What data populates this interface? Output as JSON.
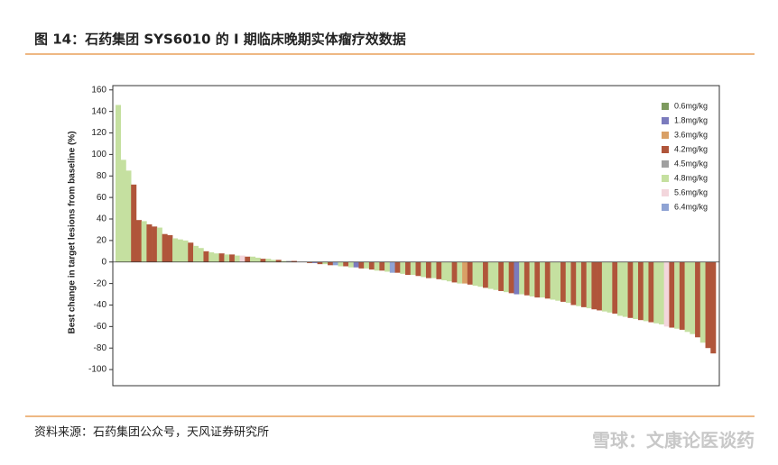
{
  "header": {
    "title": "图 14：石药集团 SYS6010 的 I 期临床晚期实体瘤疗效数据"
  },
  "chart_data": {
    "type": "waterfall",
    "y_label": "Best change in target lesions from baseline (%)",
    "ylim": [
      -115,
      164
    ],
    "yticks": [
      -100,
      -80,
      -60,
      -40,
      -20,
      0,
      20,
      40,
      60,
      80,
      100,
      120,
      140,
      160
    ],
    "series": [
      {
        "name": "0.6mg/kg",
        "color": "#7d9a5e"
      },
      {
        "name": "1.8mg/kg",
        "color": "#7b7bbd"
      },
      {
        "name": "3.6mg/kg",
        "color": "#d9a066"
      },
      {
        "name": "4.2mg/kg",
        "color": "#b0553a"
      },
      {
        "name": "4.5mg/kg",
        "color": "#a0a0a0"
      },
      {
        "name": "4.8mg/kg",
        "color": "#c5e0a0"
      },
      {
        "name": "5.6mg/kg",
        "color": "#f3d6dc"
      },
      {
        "name": "6.4mg/kg",
        "color": "#8fa3d4"
      }
    ],
    "values": [
      146,
      95,
      85,
      72,
      39,
      38,
      35,
      33,
      32,
      26,
      25,
      22,
      21,
      20,
      18,
      15,
      13,
      10,
      9,
      8,
      8,
      7,
      7,
      6,
      6,
      5,
      5,
      4,
      3,
      3,
      2,
      2,
      1,
      1,
      1,
      0,
      0,
      -1,
      -1,
      -2,
      -2,
      -3,
      -3,
      -4,
      -4,
      -5,
      -5,
      -6,
      -6,
      -7,
      -8,
      -8,
      -9,
      -10,
      -10,
      -11,
      -12,
      -12,
      -13,
      -14,
      -15,
      -15,
      -16,
      -17,
      -18,
      -19,
      -20,
      -20,
      -21,
      -22,
      -23,
      -24,
      -25,
      -26,
      -27,
      -28,
      -29,
      -30,
      -30,
      -31,
      -32,
      -33,
      -33,
      -34,
      -35,
      -36,
      -37,
      -38,
      -40,
      -41,
      -42,
      -43,
      -44,
      -45,
      -46,
      -47,
      -48,
      -50,
      -51,
      -52,
      -53,
      -54,
      -55,
      -56,
      -57,
      -58,
      -60,
      -61,
      -62,
      -63,
      -65,
      -67,
      -70,
      -75,
      -80,
      -85
    ],
    "groups": [
      5,
      5,
      5,
      3,
      3,
      5,
      3,
      3,
      5,
      3,
      3,
      5,
      5,
      5,
      3,
      5,
      5,
      3,
      5,
      5,
      3,
      5,
      3,
      5,
      6,
      3,
      5,
      5,
      3,
      5,
      5,
      3,
      5,
      4,
      3,
      5,
      5,
      3,
      1,
      3,
      5,
      3,
      7,
      5,
      3,
      5,
      1,
      3,
      5,
      3,
      5,
      3,
      5,
      7,
      3,
      5,
      3,
      5,
      3,
      5,
      3,
      5,
      3,
      5,
      5,
      3,
      5,
      2,
      3,
      5,
      5,
      3,
      5,
      5,
      3,
      5,
      3,
      1,
      5,
      3,
      5,
      3,
      5,
      3,
      5,
      5,
      3,
      5,
      3,
      5,
      3,
      5,
      3,
      3,
      5,
      5,
      3,
      5,
      5,
      3,
      5,
      3,
      5,
      3,
      5,
      5,
      6,
      3,
      5,
      3,
      5,
      5,
      3,
      5,
      3,
      3
    ],
    "legend": "top-right"
  },
  "footer": {
    "source": "资料来源：石药集团公众号，天风证券研究所"
  },
  "watermark": "雪球：文康论医谈药"
}
